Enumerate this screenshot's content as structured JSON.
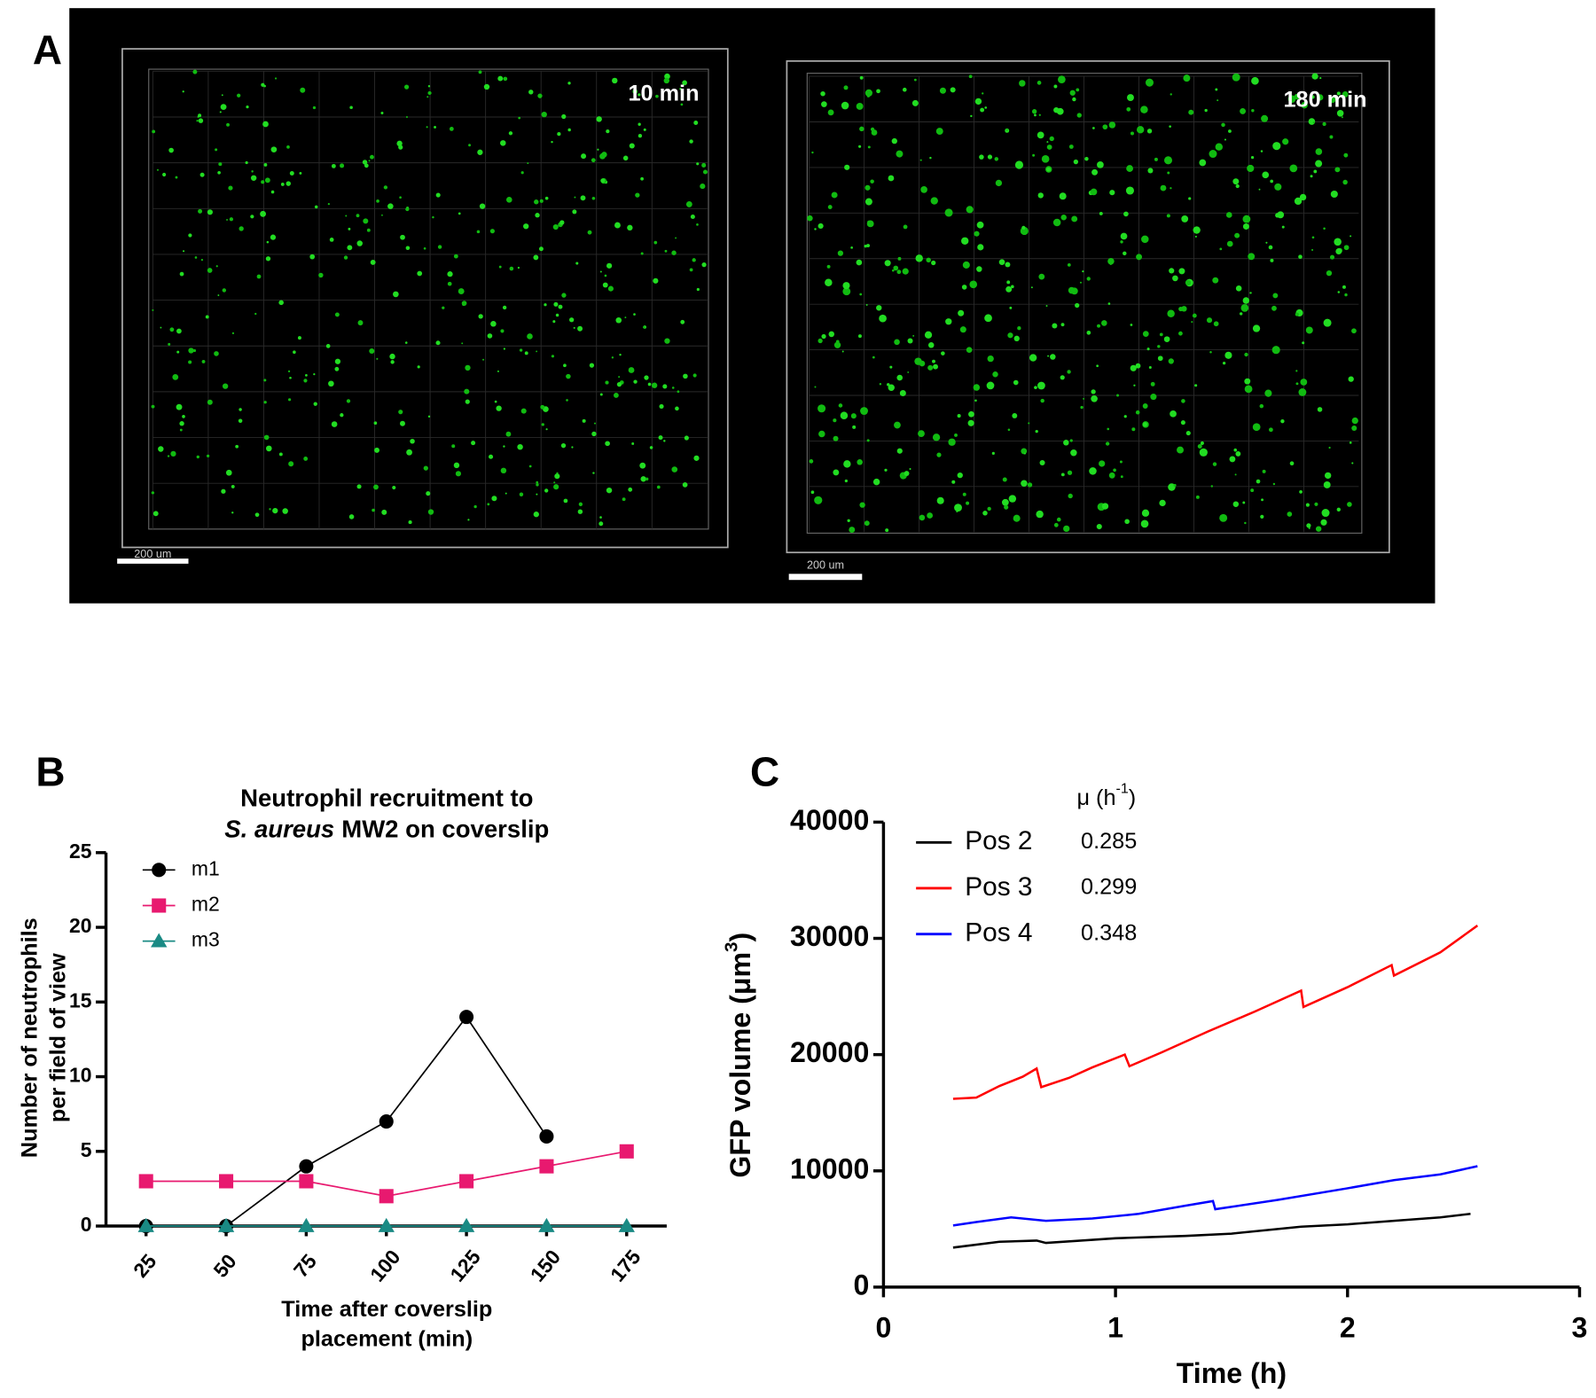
{
  "panel_a": {
    "label": "A",
    "images": [
      {
        "time": "10 min",
        "scale_bar": "200 um"
      },
      {
        "time": "180 min",
        "scale_bar": "200 um"
      }
    ]
  },
  "chart_data": [
    {
      "panel_label": "B",
      "type": "line",
      "title": [
        "Neutrophil recruitment to",
        "S. aureus",
        "MW2 on coverslip"
      ],
      "x_label": [
        "Time after coverslip",
        "placement (min)"
      ],
      "y_label": [
        "Number of neutrophils",
        "per field of view"
      ],
      "x": [
        25,
        50,
        75,
        100,
        125,
        150,
        175
      ],
      "xlim": [
        12.5,
        187.5
      ],
      "xticks": [
        25,
        50,
        75,
        100,
        125,
        150,
        175
      ],
      "ylim": [
        0,
        25
      ],
      "yticks": [
        0,
        5,
        10,
        15,
        20,
        25
      ],
      "series": [
        {
          "name": "m1",
          "color": "#000000",
          "marker": "circle",
          "values": [
            0,
            0,
            4,
            7,
            14,
            6,
            null
          ]
        },
        {
          "name": "m2",
          "color": "#e8196f",
          "marker": "square",
          "values": [
            3,
            3,
            3,
            2,
            3,
            4,
            5
          ]
        },
        {
          "name": "m3",
          "color": "#1a8a84",
          "marker": "triangle",
          "values": [
            0,
            0,
            0,
            0,
            0,
            0,
            0
          ]
        }
      ]
    },
    {
      "panel_label": "C",
      "type": "line",
      "x_label": "Time (h)",
      "y_label": [
        "GFP volume (μm",
        "3",
        ")"
      ],
      "legend_header": [
        "μ (h",
        "-1",
        ")"
      ],
      "xlim": [
        0,
        3
      ],
      "xticks": [
        0,
        1,
        2,
        3
      ],
      "ylim": [
        0,
        40000
      ],
      "yticks": [
        0,
        10000,
        20000,
        30000,
        40000
      ],
      "series": [
        {
          "name": "Pos 2",
          "mu": 0.285,
          "color": "#000000",
          "x": [
            0.3,
            0.5,
            0.66,
            0.7,
            1.0,
            1.3,
            1.5,
            1.8,
            2.0,
            2.2,
            2.4,
            2.53
          ],
          "values": [
            3400,
            3900,
            4000,
            3800,
            4200,
            4400,
            4600,
            5200,
            5400,
            5700,
            6000,
            6300
          ]
        },
        {
          "name": "Pos 3",
          "mu": 0.299,
          "color": "#ff0000",
          "x": [
            0.3,
            0.4,
            0.5,
            0.6,
            0.66,
            0.68,
            0.8,
            0.9,
            1.04,
            1.06,
            1.2,
            1.4,
            1.6,
            1.8,
            1.81,
            2.0,
            2.19,
            2.2,
            2.4,
            2.56
          ],
          "values": [
            16200,
            16300,
            17300,
            18100,
            18800,
            17200,
            18000,
            18900,
            20000,
            19000,
            20200,
            22000,
            23700,
            25500,
            24100,
            25800,
            27700,
            26800,
            28800,
            31100
          ]
        },
        {
          "name": "Pos 4",
          "mu": 0.348,
          "color": "#0000ff",
          "x": [
            0.3,
            0.4,
            0.55,
            0.7,
            0.9,
            1.1,
            1.3,
            1.42,
            1.43,
            1.7,
            2.0,
            2.2,
            2.4,
            2.56
          ],
          "values": [
            5300,
            5600,
            6000,
            5700,
            5900,
            6300,
            7000,
            7400,
            6700,
            7500,
            8500,
            9200,
            9700,
            10400
          ]
        }
      ]
    }
  ]
}
